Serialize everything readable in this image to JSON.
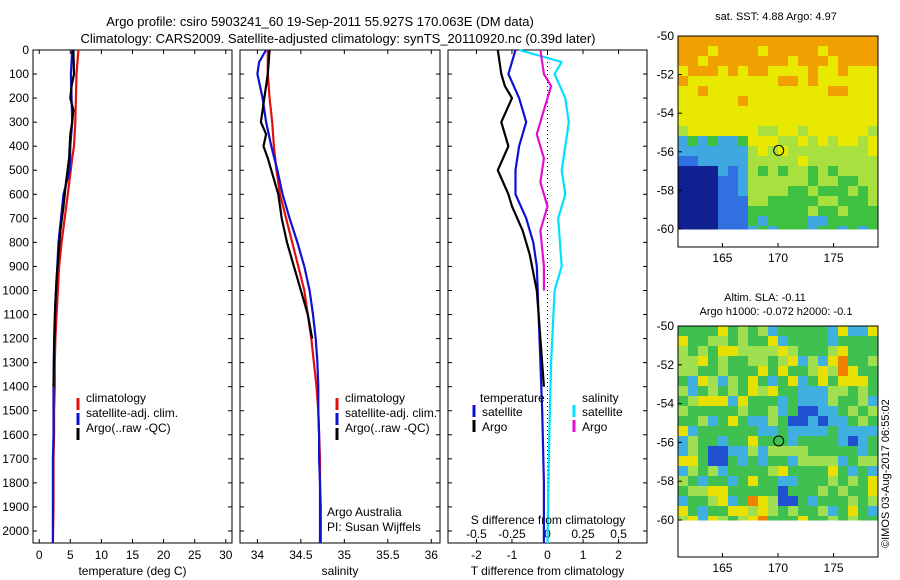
{
  "header": {
    "title_line1": "Argo profile: csiro 5903241_60 19-Sep-2011 55.927S 170.063E (DM data)",
    "title_line2": "Climatology: CARS2009. Satellite-adjusted climatology: synTS_20110920.nc (0.39d later)"
  },
  "colors": {
    "climatology": "#e01010",
    "satellite": "#1010d0",
    "argo": "#000000",
    "salinity_sat": "#00e0ff",
    "salinity_argo": "#e010d0"
  },
  "chart_data": [
    {
      "type": "line",
      "name": "temperature-profile",
      "xlabel": "temperature (deg C)",
      "xlim": [
        -1,
        31
      ],
      "ylim": [
        2050,
        0
      ],
      "xticks": [
        "0",
        "5",
        "10",
        "15",
        "20",
        "25",
        "30"
      ],
      "xtick_values": [
        0,
        5,
        10,
        15,
        20,
        25,
        30
      ],
      "yticks": [
        "0",
        "100",
        "200",
        "300",
        "400",
        "500",
        "600",
        "700",
        "800",
        "900",
        "1000",
        "1100",
        "1200",
        "1300",
        "1400",
        "1500",
        "1600",
        "1700",
        "1800",
        "1900",
        "2000"
      ],
      "ytick_values": [
        0,
        100,
        200,
        300,
        400,
        500,
        600,
        700,
        800,
        900,
        1000,
        1100,
        1200,
        1300,
        1400,
        1500,
        1600,
        1700,
        1800,
        1900,
        2000
      ],
      "legend": [
        "climatology",
        "satellite-adj. clim.",
        "Argo(..raw -QC)"
      ],
      "series": [
        {
          "name": "climatology",
          "color": "#e01010",
          "x": [
            6.3,
            6.0,
            5.9,
            5.8,
            5.6,
            5.3,
            4.6,
            4.1,
            3.6,
            3.2,
            3.0,
            2.8,
            2.6,
            2.5,
            2.5,
            2.4,
            2.4,
            2.3,
            2.3,
            2.3,
            2.2
          ],
          "y": [
            0,
            100,
            200,
            300,
            400,
            450,
            600,
            700,
            800,
            900,
            1000,
            1100,
            1200,
            1300,
            1400,
            1500,
            1600,
            1700,
            1800,
            1900,
            2050
          ]
        },
        {
          "name": "satellite-adj. clim.",
          "color": "#1010d0",
          "x": [
            5.3,
            5.1,
            5.2,
            5.3,
            5.0,
            4.9,
            3.9,
            3.5,
            3.1,
            2.9,
            2.7,
            2.5,
            2.4,
            2.3,
            2.3,
            2.3,
            2.2,
            2.2,
            2.2,
            2.2
          ],
          "y": [
            0,
            100,
            200,
            300,
            400,
            500,
            600,
            700,
            800,
            900,
            1000,
            1100,
            1200,
            1400,
            1500,
            1600,
            1700,
            1800,
            1900,
            2050
          ]
        },
        {
          "name": "Argo(..raw -QC)",
          "color": "#000000",
          "x": [
            5.5,
            5.6,
            5.2,
            5.0,
            5.5,
            5.3,
            5.0,
            4.8,
            4.3,
            3.9,
            3.4,
            3.1,
            2.8,
            2.6,
            2.5,
            2.4,
            2.3
          ],
          "y": [
            0,
            100,
            150,
            200,
            250,
            300,
            350,
            450,
            550,
            650,
            750,
            850,
            950,
            1050,
            1150,
            1250,
            1400
          ]
        }
      ]
    },
    {
      "type": "line",
      "name": "salinity-profile",
      "xlabel": "salinity",
      "xlim": [
        33.8,
        36.1
      ],
      "ylim": [
        2050,
        0
      ],
      "xticks": [
        "34",
        "34.5",
        "35",
        "35.5",
        "36"
      ],
      "xtick_values": [
        34,
        34.5,
        35,
        35.5,
        36
      ],
      "legend": [
        "climatology",
        "satellite-adj. clim.",
        "Argo(..raw -QC)"
      ],
      "annotations": [
        "Argo Australia",
        "PI: Susan Wijffels"
      ],
      "series": [
        {
          "name": "climatology",
          "color": "#e01010",
          "x": [
            34.12,
            34.12,
            34.14,
            34.17,
            34.19,
            34.22,
            34.26,
            34.33,
            34.4,
            34.47,
            34.54,
            34.58,
            34.62,
            34.65,
            34.68,
            34.7,
            34.71,
            34.72,
            34.72,
            34.73,
            34.73
          ],
          "y": [
            0,
            100,
            200,
            300,
            400,
            500,
            600,
            700,
            800,
            900,
            1000,
            1100,
            1200,
            1300,
            1400,
            1500,
            1600,
            1700,
            1800,
            1900,
            2050
          ]
        },
        {
          "name": "satellite-adj. clim.",
          "color": "#1010d0",
          "x": [
            34.1,
            34.02,
            34.0,
            34.06,
            34.1,
            34.16,
            34.23,
            34.29,
            34.37,
            34.46,
            34.54,
            34.6,
            34.64,
            34.67,
            34.69,
            34.7,
            34.7,
            34.71,
            34.71,
            34.72,
            34.72
          ],
          "y": [
            0,
            50,
            100,
            200,
            300,
            400,
            500,
            600,
            700,
            800,
            900,
            1000,
            1100,
            1200,
            1300,
            1400,
            1500,
            1600,
            1700,
            1800,
            2050
          ]
        },
        {
          "name": "Argo(..raw -QC)",
          "color": "#000000",
          "x": [
            34.14,
            34.12,
            34.08,
            34.04,
            34.1,
            34.07,
            34.12,
            34.16,
            34.2,
            34.24,
            34.28,
            34.34,
            34.42,
            34.5,
            34.58,
            34.63
          ],
          "y": [
            0,
            100,
            200,
            300,
            350,
            400,
            450,
            500,
            550,
            600,
            700,
            800,
            900,
            1000,
            1100,
            1200
          ]
        }
      ]
    },
    {
      "type": "line",
      "name": "difference-profile",
      "xlabel": "T difference from climatology",
      "xlabel_top": "S difference from climatology",
      "xlim": [
        -2.8,
        2.8
      ],
      "ylim": [
        2050,
        0
      ],
      "xticks": [
        "-2",
        "-1",
        "0",
        "1",
        "2"
      ],
      "xtick_values": [
        -2,
        -1,
        0,
        1,
        2
      ],
      "xticks_top": [
        "-0.5",
        "-0.25",
        "0",
        "0.25",
        "0.5"
      ],
      "legend_temperature": [
        "temperature",
        "satellite",
        "Argo"
      ],
      "legend_salinity": [
        "salinity",
        "satellite",
        "Argo"
      ],
      "series": [
        {
          "name": "temperature satellite",
          "color": "#1010d0",
          "x": [
            -0.9,
            -1.1,
            -0.8,
            -0.6,
            -0.8,
            -0.9,
            -0.9,
            -0.6,
            -0.4,
            -0.3,
            -0.25,
            -0.2,
            -0.15,
            -0.1,
            -0.1
          ],
          "y": [
            0,
            100,
            200,
            300,
            400,
            500,
            600,
            700,
            800,
            900,
            1100,
            1300,
            1500,
            1800,
            2050
          ]
        },
        {
          "name": "temperature Argo",
          "color": "#000000",
          "x": [
            -1.4,
            -1.3,
            -1.2,
            -1.0,
            -1.3,
            -1.1,
            -1.4,
            -1.1,
            -1.0,
            -0.7,
            -0.5,
            -0.3,
            -0.2,
            -0.1
          ],
          "y": [
            0,
            100,
            150,
            200,
            300,
            400,
            500,
            600,
            650,
            750,
            850,
            1000,
            1200,
            1400
          ]
        },
        {
          "name": "salinity satellite",
          "color": "#00e0ff",
          "x": [
            -0.8,
            0.4,
            0.2,
            0.5,
            0.6,
            0.5,
            0.4,
            0.5,
            0.3,
            0.4,
            0.2,
            0.1,
            0.05,
            0.0
          ],
          "y": [
            0,
            50,
            100,
            200,
            300,
            400,
            500,
            600,
            700,
            900,
            1000,
            1300,
            1600,
            2050
          ]
        },
        {
          "name": "salinity Argo",
          "color": "#e010d0",
          "x": [
            -0.2,
            -0.1,
            0.1,
            -0.1,
            -0.3,
            -0.1,
            -0.2,
            0.0,
            -0.2,
            -0.1,
            -0.1
          ],
          "y": [
            0,
            100,
            150,
            250,
            350,
            450,
            550,
            650,
            750,
            900,
            1000
          ]
        }
      ]
    },
    {
      "type": "heatmap",
      "name": "sst-map",
      "title": "sat. SST: 4.88 Argo: 4.97",
      "xticks": [
        "165",
        "170",
        "175"
      ],
      "xtick_values": [
        165,
        170,
        175
      ],
      "yticks": [
        "-50",
        "-52",
        "-54",
        "-56",
        "-58",
        "-60"
      ],
      "ytick_values": [
        -50,
        -52,
        -54,
        -56,
        -58,
        -60
      ],
      "xlim": [
        161,
        179
      ],
      "ylim": [
        -60,
        -50
      ],
      "marker": {
        "lon": 170.063,
        "lat": -55.927
      }
    },
    {
      "type": "heatmap",
      "name": "sla-map",
      "title_line1": "Altim. SLA: -0.11",
      "title_line2": "Argo h1000: -0.072 h2000: -0.1",
      "xticks": [
        "165",
        "170",
        "175"
      ],
      "xtick_values": [
        165,
        170,
        175
      ],
      "yticks": [
        "-50",
        "-52",
        "-54",
        "-56",
        "-58",
        "-60"
      ],
      "ytick_values": [
        -50,
        -52,
        -54,
        -56,
        -58,
        -60
      ],
      "xlim": [
        161,
        179
      ],
      "ylim": [
        -60,
        -50
      ],
      "marker": {
        "lon": 170.063,
        "lat": -55.927
      }
    }
  ],
  "credit": "©IMOS 03-Aug-2017 06:55:02"
}
